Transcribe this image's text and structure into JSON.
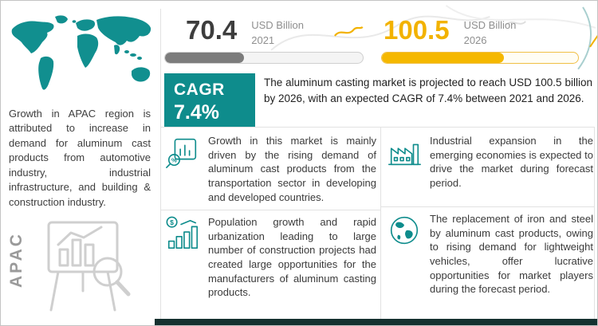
{
  "chart_data": {
    "type": "bar",
    "title": "Aluminum Casting Market",
    "categories": [
      "2021",
      "2026"
    ],
    "values": [
      70.4,
      100.5
    ],
    "unit": "USD Billion",
    "cagr": "7.4%",
    "forecast_period": "2021-2026"
  },
  "colors": {
    "teal": "#0e8c8c",
    "yellow": "#f2b200",
    "gray_fill": "#7c7c7c",
    "dark_bar": "#15302f"
  },
  "left_panel": {
    "paragraph": "Growth in APAC region is attributed to increase in demand for aluminum cast products from automotive industry, industrial infrastructure, and building & construction industry.",
    "region_label": "APAC"
  },
  "stats": {
    "current": {
      "value": "70.4",
      "unit": "USD Billion",
      "year": "2021",
      "fill_percent": 40
    },
    "projected": {
      "value": "100.5",
      "unit": "USD Billion",
      "year": "2026",
      "fill_percent": 62
    }
  },
  "cagr": {
    "label": "CAGR",
    "value": "7.4%"
  },
  "summary": {
    "text": "The aluminum casting market is projected to reach USD 100.5 billion by 2026, with an expected CAGR of 7.4% between 2021 and 2026."
  },
  "drivers": [
    {
      "icon": "bar-chart-magnifier-icon",
      "text": "Growth in this market is mainly driven by the rising demand of aluminum cast products from the transportation sector in developing and developed countries."
    },
    {
      "icon": "growth-bars-dollar-icon",
      "text": "Population growth and rapid urbanization leading to large number of construction projects had created large opportunities for the manufacturers of aluminum casting products."
    }
  ],
  "opportunities": [
    {
      "icon": "factory-icon",
      "text": "Industrial expansion in the emerging economies is expected to drive the market during forecast period."
    },
    {
      "icon": "globe-icon",
      "text": "The replacement of iron and steel by aluminum cast products, owing to rising demand for lightweight vehicles, offer lucrative opportunities for market players during the forecast period."
    }
  ]
}
